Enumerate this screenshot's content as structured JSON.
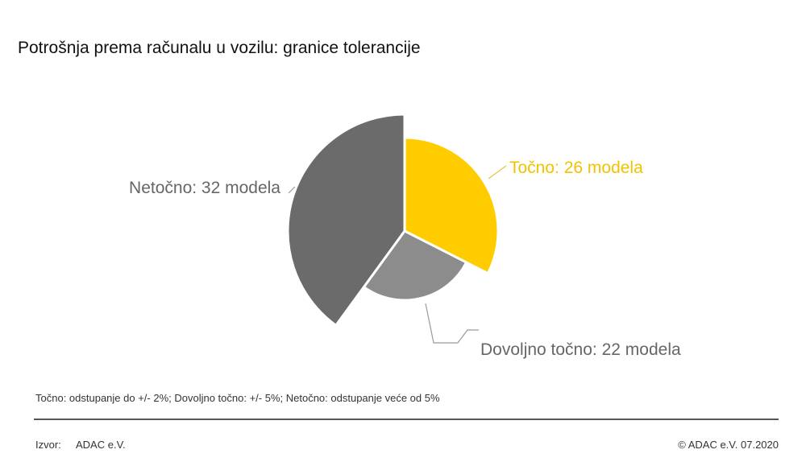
{
  "title": "Potrošnja prema računalu u vozilu: granice tolerancije",
  "chart_data": {
    "type": "pie",
    "slices": [
      {
        "label": "Točno: 26 modela",
        "category": "Točno",
        "value": 26,
        "color": "#FFCC00",
        "label_color": "#F2C200"
      },
      {
        "label": "Dovoljno točno: 22 modela",
        "category": "Dovoljno točno",
        "value": 22,
        "color": "#8C8C8C",
        "label_color": "#666666"
      },
      {
        "label": "Netočno: 32 modela",
        "category": "Netočno",
        "value": 32,
        "color": "#6B6B6B",
        "label_color": "#666666"
      }
    ],
    "unit": "modela",
    "legend": "none"
  },
  "footnote": "Točno: odstupanje do +/- 2%; Dovoljno točno: +/- 5%; Netočno: odstupanje veće od 5%",
  "source": {
    "label": "Izvor:",
    "value": "ADAC e.V."
  },
  "copyright": "© ADAC e.V. 07.2020"
}
